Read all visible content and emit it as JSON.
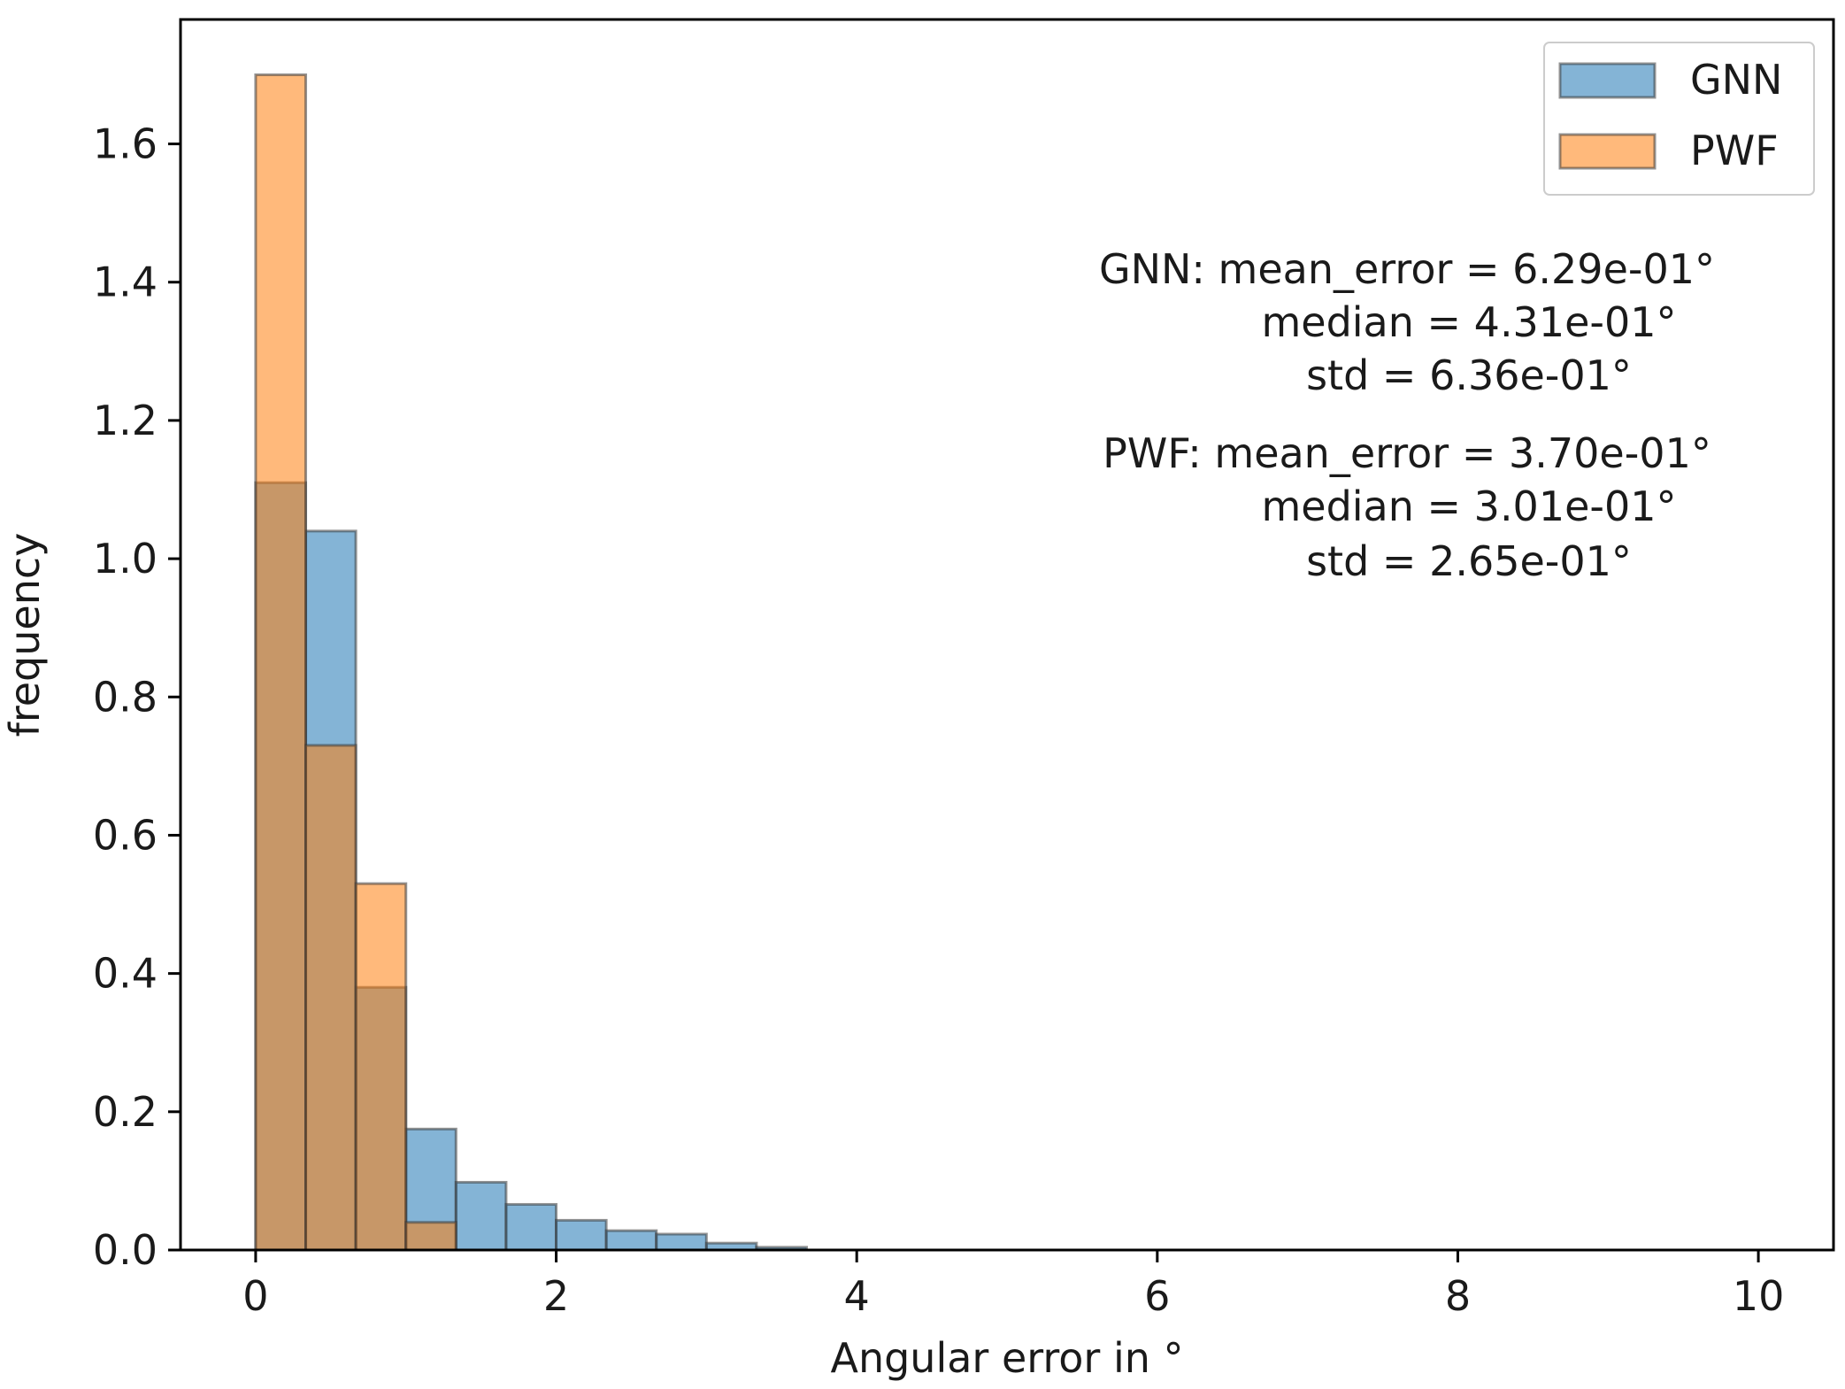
{
  "chart_data": {
    "type": "bar",
    "subtype": "histogram-overlay",
    "xlabel": "Angular error in °",
    "ylabel": "frequency",
    "xlim": [
      -0.5,
      10.5
    ],
    "ylim": [
      0,
      1.78
    ],
    "xticks": [
      0,
      2,
      4,
      6,
      8,
      10
    ],
    "yticks": [
      0.0,
      0.2,
      0.4,
      0.6,
      0.8,
      1.0,
      1.2,
      1.4,
      1.6
    ],
    "ytick_labels": [
      "0.0",
      "0.2",
      "0.4",
      "0.6",
      "0.8",
      "1.0",
      "1.2",
      "1.4",
      "1.6"
    ],
    "bin_start": 0,
    "bin_width": 0.3333,
    "series": [
      {
        "name": "GNN",
        "color": "#1f77b4",
        "values": [
          1.11,
          1.04,
          0.38,
          0.175,
          0.098,
          0.066,
          0.043,
          0.028,
          0.023,
          0.01,
          0.004,
          0,
          0,
          0,
          0,
          0,
          0,
          0,
          0,
          0,
          0,
          0,
          0,
          0,
          0,
          0,
          0,
          0,
          0,
          0
        ]
      },
      {
        "name": "PWF",
        "color": "#ff7f0e",
        "values": [
          1.7,
          0.73,
          0.53,
          0.04,
          0,
          0,
          0,
          0,
          0,
          0,
          0,
          0,
          0,
          0,
          0,
          0,
          0,
          0,
          0,
          0,
          0,
          0,
          0,
          0,
          0,
          0,
          0,
          0,
          0,
          0
        ]
      }
    ],
    "legend": {
      "placement": "top-right",
      "entries": [
        "GNN",
        "PWF"
      ]
    },
    "annotations": {
      "gnn": [
        "GNN: mean_error = 6.29e-01°",
        "median = 4.31e-01°",
        "std = 6.36e-01°"
      ],
      "pwf": [
        "PWF: mean_error = 3.70e-01°",
        "median = 3.01e-01°",
        "std = 2.65e-01°"
      ]
    }
  }
}
